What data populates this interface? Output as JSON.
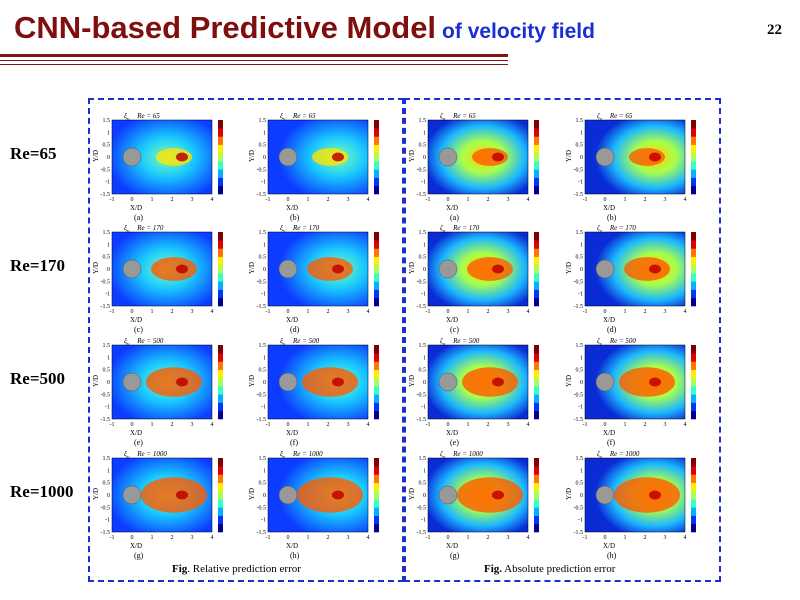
{
  "title": {
    "main": "CNN-based Predictive Model",
    "sub": "of velocity field"
  },
  "slide_number": "22",
  "row_labels": [
    "Re=65",
    "Re=170",
    "Re=500",
    "Re=1000"
  ],
  "panels": [
    {
      "caption_bold": "Fig",
      "caption_text": ". Relative prediction error",
      "plots": [
        {
          "sym": "ξ",
          "comp": "u",
          "re": "Re = 65",
          "sub": "(a)"
        },
        {
          "sym": "ξ",
          "comp": "v",
          "re": "Re = 65",
          "sub": "(b)"
        },
        {
          "sym": "ξ",
          "comp": "u",
          "re": "Re = 170",
          "sub": "(c)"
        },
        {
          "sym": "ξ",
          "comp": "v",
          "re": "Re = 170",
          "sub": "(d)"
        },
        {
          "sym": "ξ",
          "comp": "u",
          "re": "Re = 500",
          "sub": "(e)"
        },
        {
          "sym": "ξ",
          "comp": "v",
          "re": "Re = 500",
          "sub": "(f)"
        },
        {
          "sym": "ξ",
          "comp": "u",
          "re": "Re = 1000",
          "sub": "(g)"
        },
        {
          "sym": "ξ",
          "comp": "v",
          "re": "Re = 1000",
          "sub": "(h)"
        }
      ]
    },
    {
      "caption_bold": "Fig.",
      "caption_text": " Absolute prediction error",
      "plots": [
        {
          "sym": "ζ",
          "comp": "u",
          "re": "Re = 65",
          "sub": "(a)"
        },
        {
          "sym": "ζ",
          "comp": "v",
          "re": "Re = 65",
          "sub": "(b)"
        },
        {
          "sym": "ζ",
          "comp": "u",
          "re": "Re = 170",
          "sub": "(c)"
        },
        {
          "sym": "ζ",
          "comp": "v",
          "re": "Re = 170",
          "sub": "(d)"
        },
        {
          "sym": "ζ",
          "comp": "u",
          "re": "Re = 500",
          "sub": "(e)"
        },
        {
          "sym": "ζ",
          "comp": "v",
          "re": "Re = 500",
          "sub": "(f)"
        },
        {
          "sym": "ζ",
          "comp": "u",
          "re": "Re = 1000",
          "sub": "(g)"
        },
        {
          "sym": "ζ",
          "comp": "v",
          "re": "Re = 1000",
          "sub": "(h)"
        }
      ]
    }
  ],
  "axes": {
    "xlabel": "X/D",
    "ylabel": "Y/D",
    "xticks": [
      "-1",
      "0",
      "1",
      "2",
      "3",
      "4"
    ],
    "yticks": [
      "1.5",
      "1",
      "0.5",
      "0",
      "-0.5",
      "-1",
      "-1.5"
    ]
  },
  "colors": {
    "title": "#7f0e0e",
    "subtitle": "#1a2fd0",
    "panel_border": "#1a2fd0",
    "cylinder": "#999999"
  }
}
